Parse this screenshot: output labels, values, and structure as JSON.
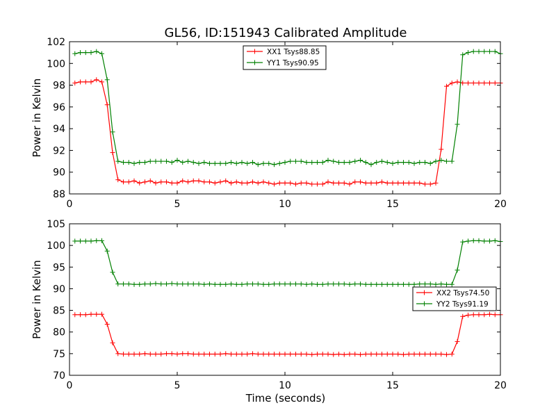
{
  "figure": {
    "title": "GL56, ID:151943 Calibrated Amplitude",
    "xlabel": "Time (seconds)"
  },
  "colors": {
    "xx": "#ff0000",
    "yy": "#008000",
    "axes": "#000000",
    "background": "#ffffff"
  },
  "chart_data": [
    {
      "type": "line",
      "title": "GL56, ID:151943 Calibrated Amplitude",
      "xlabel": "",
      "ylabel": "Power in Kelvin",
      "xlim": [
        0,
        20
      ],
      "ylim": [
        88,
        102
      ],
      "xticks": [
        "0",
        "5",
        "10",
        "15",
        "20"
      ],
      "yticks": [
        "88",
        "90",
        "92",
        "94",
        "96",
        "98",
        "100",
        "102"
      ],
      "ytick_values": [
        88,
        90,
        92,
        94,
        96,
        98,
        100,
        102
      ],
      "xtick_values": [
        0,
        5,
        10,
        15,
        20
      ],
      "legend_position": "top-center",
      "x": [
        0.25,
        0.5,
        0.75,
        1.0,
        1.25,
        1.5,
        1.75,
        2.0,
        2.25,
        2.5,
        2.75,
        3.0,
        3.25,
        3.5,
        3.75,
        4.0,
        4.25,
        4.5,
        4.75,
        5.0,
        5.25,
        5.5,
        5.75,
        6.0,
        6.25,
        6.5,
        6.75,
        7.0,
        7.25,
        7.5,
        7.75,
        8.0,
        8.25,
        8.5,
        8.75,
        9.0,
        9.25,
        9.5,
        9.75,
        10.0,
        10.25,
        10.5,
        10.75,
        11.0,
        11.25,
        11.5,
        11.75,
        12.0,
        12.25,
        12.5,
        12.75,
        13.0,
        13.25,
        13.5,
        13.75,
        14.0,
        14.25,
        14.5,
        14.75,
        15.0,
        15.25,
        15.5,
        15.75,
        16.0,
        16.25,
        16.5,
        16.75,
        17.0,
        17.25,
        17.5,
        17.75,
        18.0,
        18.25,
        18.5,
        18.75,
        19.0,
        19.25,
        19.5,
        19.75,
        20.0
      ],
      "series": [
        {
          "name": "XX1 Tsys88.85",
          "color": "#ff0000",
          "values": [
            98.2,
            98.3,
            98.3,
            98.3,
            98.5,
            98.3,
            96.2,
            91.8,
            89.3,
            89.1,
            89.1,
            89.2,
            89.0,
            89.1,
            89.2,
            89.0,
            89.1,
            89.1,
            89.0,
            89.0,
            89.2,
            89.1,
            89.2,
            89.2,
            89.1,
            89.1,
            89.0,
            89.1,
            89.2,
            89.0,
            89.1,
            89.0,
            89.0,
            89.1,
            89.0,
            89.1,
            89.0,
            88.9,
            89.0,
            89.0,
            89.0,
            88.9,
            89.0,
            89.0,
            88.9,
            88.9,
            88.9,
            89.1,
            89.0,
            89.0,
            89.0,
            88.9,
            89.1,
            89.1,
            89.0,
            89.0,
            89.0,
            89.1,
            89.0,
            89.0,
            89.0,
            89.0,
            89.0,
            89.0,
            89.0,
            88.9,
            88.9,
            89.0,
            92.1,
            97.9,
            98.2,
            98.3,
            98.2,
            98.2,
            98.2,
            98.2,
            98.2,
            98.2,
            98.2,
            98.2
          ]
        },
        {
          "name": "YY1 Tsys90.95",
          "color": "#008000",
          "values": [
            100.9,
            101.0,
            101.0,
            101.0,
            101.1,
            100.9,
            98.5,
            93.7,
            91.0,
            90.9,
            90.9,
            90.8,
            90.9,
            90.9,
            91.0,
            91.0,
            91.0,
            91.0,
            90.9,
            91.1,
            90.9,
            91.0,
            90.9,
            90.8,
            90.9,
            90.8,
            90.8,
            90.8,
            90.8,
            90.9,
            90.8,
            90.9,
            90.8,
            90.9,
            90.7,
            90.8,
            90.8,
            90.7,
            90.8,
            90.9,
            91.0,
            91.0,
            91.0,
            90.9,
            90.9,
            90.9,
            90.9,
            91.1,
            91.0,
            90.9,
            90.9,
            90.9,
            91.0,
            91.1,
            90.9,
            90.7,
            90.9,
            91.0,
            90.9,
            90.8,
            90.9,
            90.9,
            90.9,
            90.8,
            90.9,
            90.9,
            90.8,
            91.0,
            91.1,
            91.0,
            91.0,
            94.4,
            100.8,
            101.0,
            101.1,
            101.1,
            101.1,
            101.1,
            101.1,
            100.9
          ]
        }
      ]
    },
    {
      "type": "line",
      "title": "",
      "xlabel": "Time (seconds)",
      "ylabel": "Power in Kelvin",
      "xlim": [
        0,
        20
      ],
      "ylim": [
        70,
        105
      ],
      "xticks": [
        "0",
        "5",
        "10",
        "15",
        "20"
      ],
      "yticks": [
        "70",
        "75",
        "80",
        "85",
        "90",
        "95",
        "100",
        "105"
      ],
      "ytick_values": [
        70,
        75,
        80,
        85,
        90,
        95,
        100,
        105
      ],
      "xtick_values": [
        0,
        5,
        10,
        15,
        20
      ],
      "legend_position": "center-right",
      "x": [
        0.25,
        0.5,
        0.75,
        1.0,
        1.25,
        1.5,
        1.75,
        2.0,
        2.25,
        2.5,
        2.75,
        3.0,
        3.25,
        3.5,
        3.75,
        4.0,
        4.25,
        4.5,
        4.75,
        5.0,
        5.25,
        5.5,
        5.75,
        6.0,
        6.25,
        6.5,
        6.75,
        7.0,
        7.25,
        7.5,
        7.75,
        8.0,
        8.25,
        8.5,
        8.75,
        9.0,
        9.25,
        9.5,
        9.75,
        10.0,
        10.25,
        10.5,
        10.75,
        11.0,
        11.25,
        11.5,
        11.75,
        12.0,
        12.25,
        12.5,
        12.75,
        13.0,
        13.25,
        13.5,
        13.75,
        14.0,
        14.25,
        14.5,
        14.75,
        15.0,
        15.25,
        15.5,
        15.75,
        16.0,
        16.25,
        16.5,
        16.75,
        17.0,
        17.25,
        17.5,
        17.75,
        18.0,
        18.25,
        18.5,
        18.75,
        19.0,
        19.25,
        19.5,
        19.75,
        20.0
      ],
      "series": [
        {
          "name": "XX2 Tsys74.50",
          "color": "#ff0000",
          "values": [
            84.0,
            84.0,
            84.0,
            84.1,
            84.1,
            84.1,
            81.8,
            77.5,
            75.0,
            74.9,
            74.9,
            74.9,
            74.9,
            75.0,
            74.9,
            74.9,
            74.9,
            75.0,
            75.0,
            74.9,
            75.0,
            75.0,
            74.9,
            74.9,
            74.9,
            74.9,
            74.9,
            74.9,
            75.0,
            74.9,
            74.9,
            74.9,
            74.9,
            75.0,
            74.9,
            74.9,
            74.9,
            74.9,
            74.9,
            74.9,
            74.9,
            74.9,
            74.9,
            74.9,
            74.8,
            74.9,
            74.9,
            74.9,
            74.8,
            74.9,
            74.8,
            74.9,
            74.9,
            74.8,
            74.9,
            74.9,
            74.9,
            74.9,
            74.9,
            74.9,
            74.9,
            74.8,
            74.9,
            74.9,
            74.9,
            74.9,
            74.9,
            74.9,
            74.9,
            74.8,
            74.9,
            77.8,
            83.6,
            83.9,
            84.0,
            84.0,
            84.0,
            84.1,
            84.0,
            84.0
          ]
        },
        {
          "name": "YY2 Tsys91.19",
          "color": "#008000",
          "values": [
            101.0,
            101.0,
            101.0,
            101.0,
            101.1,
            101.1,
            98.7,
            93.8,
            91.1,
            91.1,
            91.1,
            91.0,
            91.0,
            91.1,
            91.1,
            91.2,
            91.1,
            91.1,
            91.2,
            91.1,
            91.1,
            91.1,
            91.1,
            91.1,
            91.0,
            91.1,
            91.0,
            91.0,
            91.0,
            91.1,
            91.0,
            91.0,
            91.1,
            91.1,
            91.1,
            91.0,
            91.0,
            91.1,
            91.1,
            91.1,
            91.1,
            91.1,
            91.1,
            91.0,
            91.1,
            91.0,
            91.0,
            91.1,
            91.1,
            91.1,
            91.1,
            91.0,
            91.1,
            91.1,
            91.0,
            91.0,
            91.0,
            91.0,
            91.0,
            91.0,
            91.0,
            91.0,
            91.0,
            91.0,
            91.1,
            91.1,
            91.1,
            91.0,
            91.1,
            91.0,
            91.0,
            94.3,
            100.8,
            101.0,
            101.1,
            101.1,
            101.0,
            101.0,
            101.1,
            100.9
          ]
        }
      ]
    }
  ]
}
